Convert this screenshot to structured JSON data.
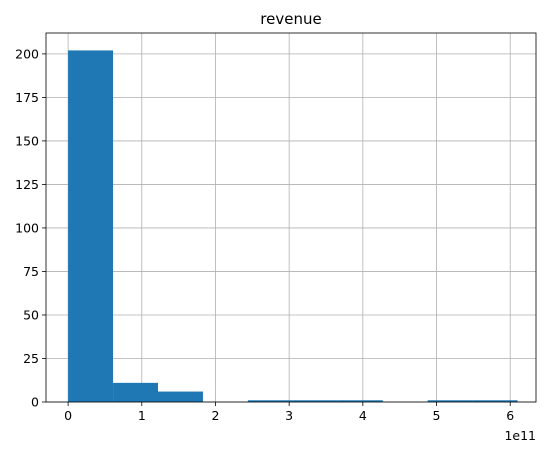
{
  "chart_data": {
    "type": "bar",
    "title": "revenue",
    "xlabel": "",
    "ylabel": "",
    "x_offset_label": "1e11",
    "xlim": [
      -0.3,
      6.35
    ],
    "ylim": [
      0,
      212
    ],
    "grid": true,
    "bar_color": "#1f77b4",
    "x_ticks": [
      0,
      1,
      2,
      3,
      4,
      5,
      6
    ],
    "x_tick_labels": [
      "0",
      "1",
      "2",
      "3",
      "4",
      "5",
      "6"
    ],
    "y_ticks": [
      0,
      25,
      50,
      75,
      100,
      125,
      150,
      175,
      200
    ],
    "y_tick_labels": [
      "0",
      "25",
      "50",
      "75",
      "100",
      "125",
      "150",
      "175",
      "200"
    ],
    "bins": [
      {
        "start": 0.0,
        "end": 0.61,
        "count": 202
      },
      {
        "start": 0.61,
        "end": 1.22,
        "count": 11
      },
      {
        "start": 1.22,
        "end": 1.83,
        "count": 6
      },
      {
        "start": 1.83,
        "end": 2.44,
        "count": 0
      },
      {
        "start": 2.44,
        "end": 3.05,
        "count": 1
      },
      {
        "start": 3.05,
        "end": 3.66,
        "count": 1
      },
      {
        "start": 3.66,
        "end": 4.27,
        "count": 1
      },
      {
        "start": 4.27,
        "end": 4.88,
        "count": 0
      },
      {
        "start": 4.88,
        "end": 5.49,
        "count": 1
      },
      {
        "start": 5.49,
        "end": 6.1,
        "count": 1
      }
    ]
  }
}
